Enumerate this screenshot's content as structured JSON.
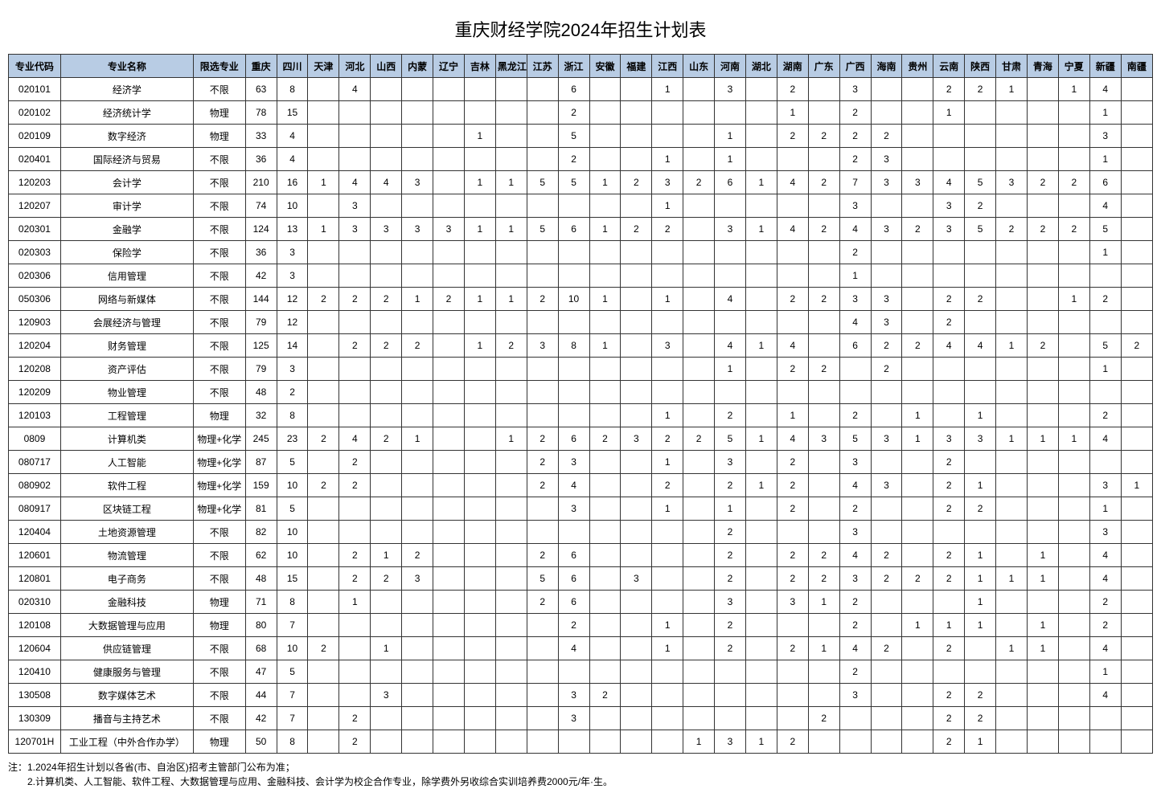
{
  "title": "重庆财经学院2024年招生计划表",
  "columns": [
    "专业代码",
    "专业名称",
    "限选专业",
    "重庆",
    "四川",
    "天津",
    "河北",
    "山西",
    "内蒙",
    "辽宁",
    "吉林",
    "黑龙江",
    "江苏",
    "浙江",
    "安徽",
    "福建",
    "江西",
    "山东",
    "河南",
    "湖北",
    "湖南",
    "广东",
    "广西",
    "海南",
    "贵州",
    "云南",
    "陕西",
    "甘肃",
    "青海",
    "宁夏",
    "新疆",
    "南疆"
  ],
  "rows": [
    [
      "020101",
      "经济学",
      "不限",
      "63",
      "8",
      "",
      "4",
      "",
      "",
      "",
      "",
      "",
      "",
      "6",
      "",
      "",
      "1",
      "",
      "3",
      "",
      "2",
      "",
      "3",
      "",
      "",
      "2",
      "2",
      "1",
      "",
      "1",
      "4",
      ""
    ],
    [
      "020102",
      "经济统计学",
      "物理",
      "78",
      "15",
      "",
      "",
      "",
      "",
      "",
      "",
      "",
      "",
      "2",
      "",
      "",
      "",
      "",
      "",
      "",
      "1",
      "",
      "2",
      "",
      "",
      "1",
      "",
      "",
      "",
      "",
      "1",
      ""
    ],
    [
      "020109",
      "数字经济",
      "物理",
      "33",
      "4",
      "",
      "",
      "",
      "",
      "",
      "1",
      "",
      "",
      "5",
      "",
      "",
      "",
      "",
      "1",
      "",
      "2",
      "2",
      "2",
      "2",
      "",
      "",
      "",
      "",
      "",
      "",
      "3",
      ""
    ],
    [
      "020401",
      "国际经济与贸易",
      "不限",
      "36",
      "4",
      "",
      "",
      "",
      "",
      "",
      "",
      "",
      "",
      "2",
      "",
      "",
      "1",
      "",
      "1",
      "",
      "",
      "",
      "2",
      "3",
      "",
      "",
      "",
      "",
      "",
      "",
      "1",
      ""
    ],
    [
      "120203",
      "会计学",
      "不限",
      "210",
      "16",
      "1",
      "4",
      "4",
      "3",
      "",
      "1",
      "1",
      "5",
      "5",
      "1",
      "2",
      "3",
      "2",
      "6",
      "1",
      "4",
      "2",
      "7",
      "3",
      "3",
      "4",
      "5",
      "3",
      "2",
      "2",
      "6",
      ""
    ],
    [
      "120207",
      "审计学",
      "不限",
      "74",
      "10",
      "",
      "3",
      "",
      "",
      "",
      "",
      "",
      "",
      "",
      "",
      "",
      "1",
      "",
      "",
      "",
      "",
      "",
      "3",
      "",
      "",
      "3",
      "2",
      "",
      "",
      "",
      "4",
      ""
    ],
    [
      "020301",
      "金融学",
      "不限",
      "124",
      "13",
      "1",
      "3",
      "3",
      "3",
      "3",
      "1",
      "1",
      "5",
      "6",
      "1",
      "2",
      "2",
      "",
      "3",
      "1",
      "4",
      "2",
      "4",
      "3",
      "2",
      "3",
      "5",
      "2",
      "2",
      "2",
      "5",
      ""
    ],
    [
      "020303",
      "保险学",
      "不限",
      "36",
      "3",
      "",
      "",
      "",
      "",
      "",
      "",
      "",
      "",
      "",
      "",
      "",
      "",
      "",
      "",
      "",
      "",
      "",
      "2",
      "",
      "",
      "",
      "",
      "",
      "",
      "",
      "1",
      ""
    ],
    [
      "020306",
      "信用管理",
      "不限",
      "42",
      "3",
      "",
      "",
      "",
      "",
      "",
      "",
      "",
      "",
      "",
      "",
      "",
      "",
      "",
      "",
      "",
      "",
      "",
      "1",
      "",
      "",
      "",
      "",
      "",
      "",
      "",
      "",
      ""
    ],
    [
      "050306",
      "网络与新媒体",
      "不限",
      "144",
      "12",
      "2",
      "2",
      "2",
      "1",
      "2",
      "1",
      "1",
      "2",
      "10",
      "1",
      "",
      "1",
      "",
      "4",
      "",
      "2",
      "2",
      "3",
      "3",
      "",
      "2",
      "2",
      "",
      "",
      "1",
      "2",
      ""
    ],
    [
      "120903",
      "会展经济与管理",
      "不限",
      "79",
      "12",
      "",
      "",
      "",
      "",
      "",
      "",
      "",
      "",
      "",
      "",
      "",
      "",
      "",
      "",
      "",
      "",
      "",
      "4",
      "3",
      "",
      "2",
      "",
      "",
      "",
      "",
      "",
      ""
    ],
    [
      "120204",
      "财务管理",
      "不限",
      "125",
      "14",
      "",
      "2",
      "2",
      "2",
      "",
      "1",
      "2",
      "3",
      "8",
      "1",
      "",
      "3",
      "",
      "4",
      "1",
      "4",
      "",
      "6",
      "2",
      "2",
      "4",
      "4",
      "1",
      "2",
      "",
      "5",
      "2"
    ],
    [
      "120208",
      "资产评估",
      "不限",
      "79",
      "3",
      "",
      "",
      "",
      "",
      "",
      "",
      "",
      "",
      "",
      "",
      "",
      "",
      "",
      "1",
      "",
      "2",
      "2",
      "",
      "2",
      "",
      "",
      "",
      "",
      "",
      "",
      "1",
      ""
    ],
    [
      "120209",
      "物业管理",
      "不限",
      "48",
      "2",
      "",
      "",
      "",
      "",
      "",
      "",
      "",
      "",
      "",
      "",
      "",
      "",
      "",
      "",
      "",
      "",
      "",
      "",
      "",
      "",
      "",
      "",
      "",
      "",
      "",
      "",
      ""
    ],
    [
      "120103",
      "工程管理",
      "物理",
      "32",
      "8",
      "",
      "",
      "",
      "",
      "",
      "",
      "",
      "",
      "",
      "",
      "",
      "1",
      "",
      "2",
      "",
      "1",
      "",
      "2",
      "",
      "1",
      "",
      "1",
      "",
      "",
      "",
      "2",
      ""
    ],
    [
      "0809",
      "计算机类",
      "物理+化学",
      "245",
      "23",
      "2",
      "4",
      "2",
      "1",
      "",
      "",
      "1",
      "2",
      "6",
      "2",
      "3",
      "2",
      "2",
      "5",
      "1",
      "4",
      "3",
      "5",
      "3",
      "1",
      "3",
      "3",
      "1",
      "1",
      "1",
      "4",
      ""
    ],
    [
      "080717",
      "人工智能",
      "物理+化学",
      "87",
      "5",
      "",
      "2",
      "",
      "",
      "",
      "",
      "",
      "2",
      "3",
      "",
      "",
      "1",
      "",
      "3",
      "",
      "2",
      "",
      "3",
      "",
      "",
      "2",
      "",
      "",
      "",
      "",
      "",
      ""
    ],
    [
      "080902",
      "软件工程",
      "物理+化学",
      "159",
      "10",
      "2",
      "2",
      "",
      "",
      "",
      "",
      "",
      "2",
      "4",
      "",
      "",
      "2",
      "",
      "2",
      "1",
      "2",
      "",
      "4",
      "3",
      "",
      "2",
      "1",
      "",
      "",
      "",
      "3",
      "1"
    ],
    [
      "080917",
      "区块链工程",
      "物理+化学",
      "81",
      "5",
      "",
      "",
      "",
      "",
      "",
      "",
      "",
      "",
      "3",
      "",
      "",
      "1",
      "",
      "1",
      "",
      "2",
      "",
      "2",
      "",
      "",
      "2",
      "2",
      "",
      "",
      "",
      "1",
      ""
    ],
    [
      "120404",
      "土地资源管理",
      "不限",
      "82",
      "10",
      "",
      "",
      "",
      "",
      "",
      "",
      "",
      "",
      "",
      "",
      "",
      "",
      "",
      "2",
      "",
      "",
      "",
      "3",
      "",
      "",
      "",
      "",
      "",
      "",
      "",
      "3",
      ""
    ],
    [
      "120601",
      "物流管理",
      "不限",
      "62",
      "10",
      "",
      "2",
      "1",
      "2",
      "",
      "",
      "",
      "2",
      "6",
      "",
      "",
      "",
      "",
      "2",
      "",
      "2",
      "2",
      "4",
      "2",
      "",
      "2",
      "1",
      "",
      "1",
      "",
      "4",
      ""
    ],
    [
      "120801",
      "电子商务",
      "不限",
      "48",
      "15",
      "",
      "2",
      "2",
      "3",
      "",
      "",
      "",
      "5",
      "6",
      "",
      "3",
      "",
      "",
      "2",
      "",
      "2",
      "2",
      "3",
      "2",
      "2",
      "2",
      "1",
      "1",
      "1",
      "",
      "4",
      ""
    ],
    [
      "020310",
      "金融科技",
      "物理",
      "71",
      "8",
      "",
      "1",
      "",
      "",
      "",
      "",
      "",
      "2",
      "6",
      "",
      "",
      "",
      "",
      "3",
      "",
      "3",
      "1",
      "2",
      "",
      "",
      "",
      "1",
      "",
      "",
      "",
      "2",
      ""
    ],
    [
      "120108",
      "大数据管理与应用",
      "物理",
      "80",
      "7",
      "",
      "",
      "",
      "",
      "",
      "",
      "",
      "",
      "2",
      "",
      "",
      "1",
      "",
      "2",
      "",
      "",
      "",
      "2",
      "",
      "1",
      "1",
      "1",
      "",
      "1",
      "",
      "2",
      ""
    ],
    [
      "120604",
      "供应链管理",
      "不限",
      "68",
      "10",
      "2",
      "",
      "1",
      "",
      "",
      "",
      "",
      "",
      "4",
      "",
      "",
      "1",
      "",
      "2",
      "",
      "2",
      "1",
      "4",
      "2",
      "",
      "2",
      "",
      "1",
      "1",
      "",
      "4",
      ""
    ],
    [
      "120410",
      "健康服务与管理",
      "不限",
      "47",
      "5",
      "",
      "",
      "",
      "",
      "",
      "",
      "",
      "",
      "",
      "",
      "",
      "",
      "",
      "",
      "",
      "",
      "",
      "2",
      "",
      "",
      "",
      "",
      "",
      "",
      "",
      "1",
      ""
    ],
    [
      "130508",
      "数字媒体艺术",
      "不限",
      "44",
      "7",
      "",
      "",
      "3",
      "",
      "",
      "",
      "",
      "",
      "3",
      "2",
      "",
      "",
      "",
      "",
      "",
      "",
      "",
      "3",
      "",
      "",
      "2",
      "2",
      "",
      "",
      "",
      "4",
      ""
    ],
    [
      "130309",
      "播音与主持艺术",
      "不限",
      "42",
      "7",
      "",
      "2",
      "",
      "",
      "",
      "",
      "",
      "",
      "3",
      "",
      "",
      "",
      "",
      "",
      "",
      "",
      "2",
      "",
      "",
      "",
      "2",
      "2",
      "",
      "",
      "",
      "",
      ""
    ],
    [
      "120701H",
      "工业工程（中外合作办学）",
      "物理",
      "50",
      "8",
      "",
      "2",
      "",
      "",
      "",
      "",
      "",
      "",
      "",
      "",
      "",
      "",
      "1",
      "3",
      "1",
      "2",
      "",
      "",
      "",
      "",
      "2",
      "1",
      "",
      "",
      "",
      "",
      ""
    ]
  ],
  "notes": [
    "注：1.2024年招生计划以各省(市、自治区)招考主管部门公布为准；",
    "　　2.计算机类、人工智能、软件工程、大数据管理与应用、金融科技、会计学为校企合作专业，除学费外另收综合实训培养费2000元/年·生。"
  ],
  "header_bg": "#b8cce4",
  "border_color": "#333333"
}
